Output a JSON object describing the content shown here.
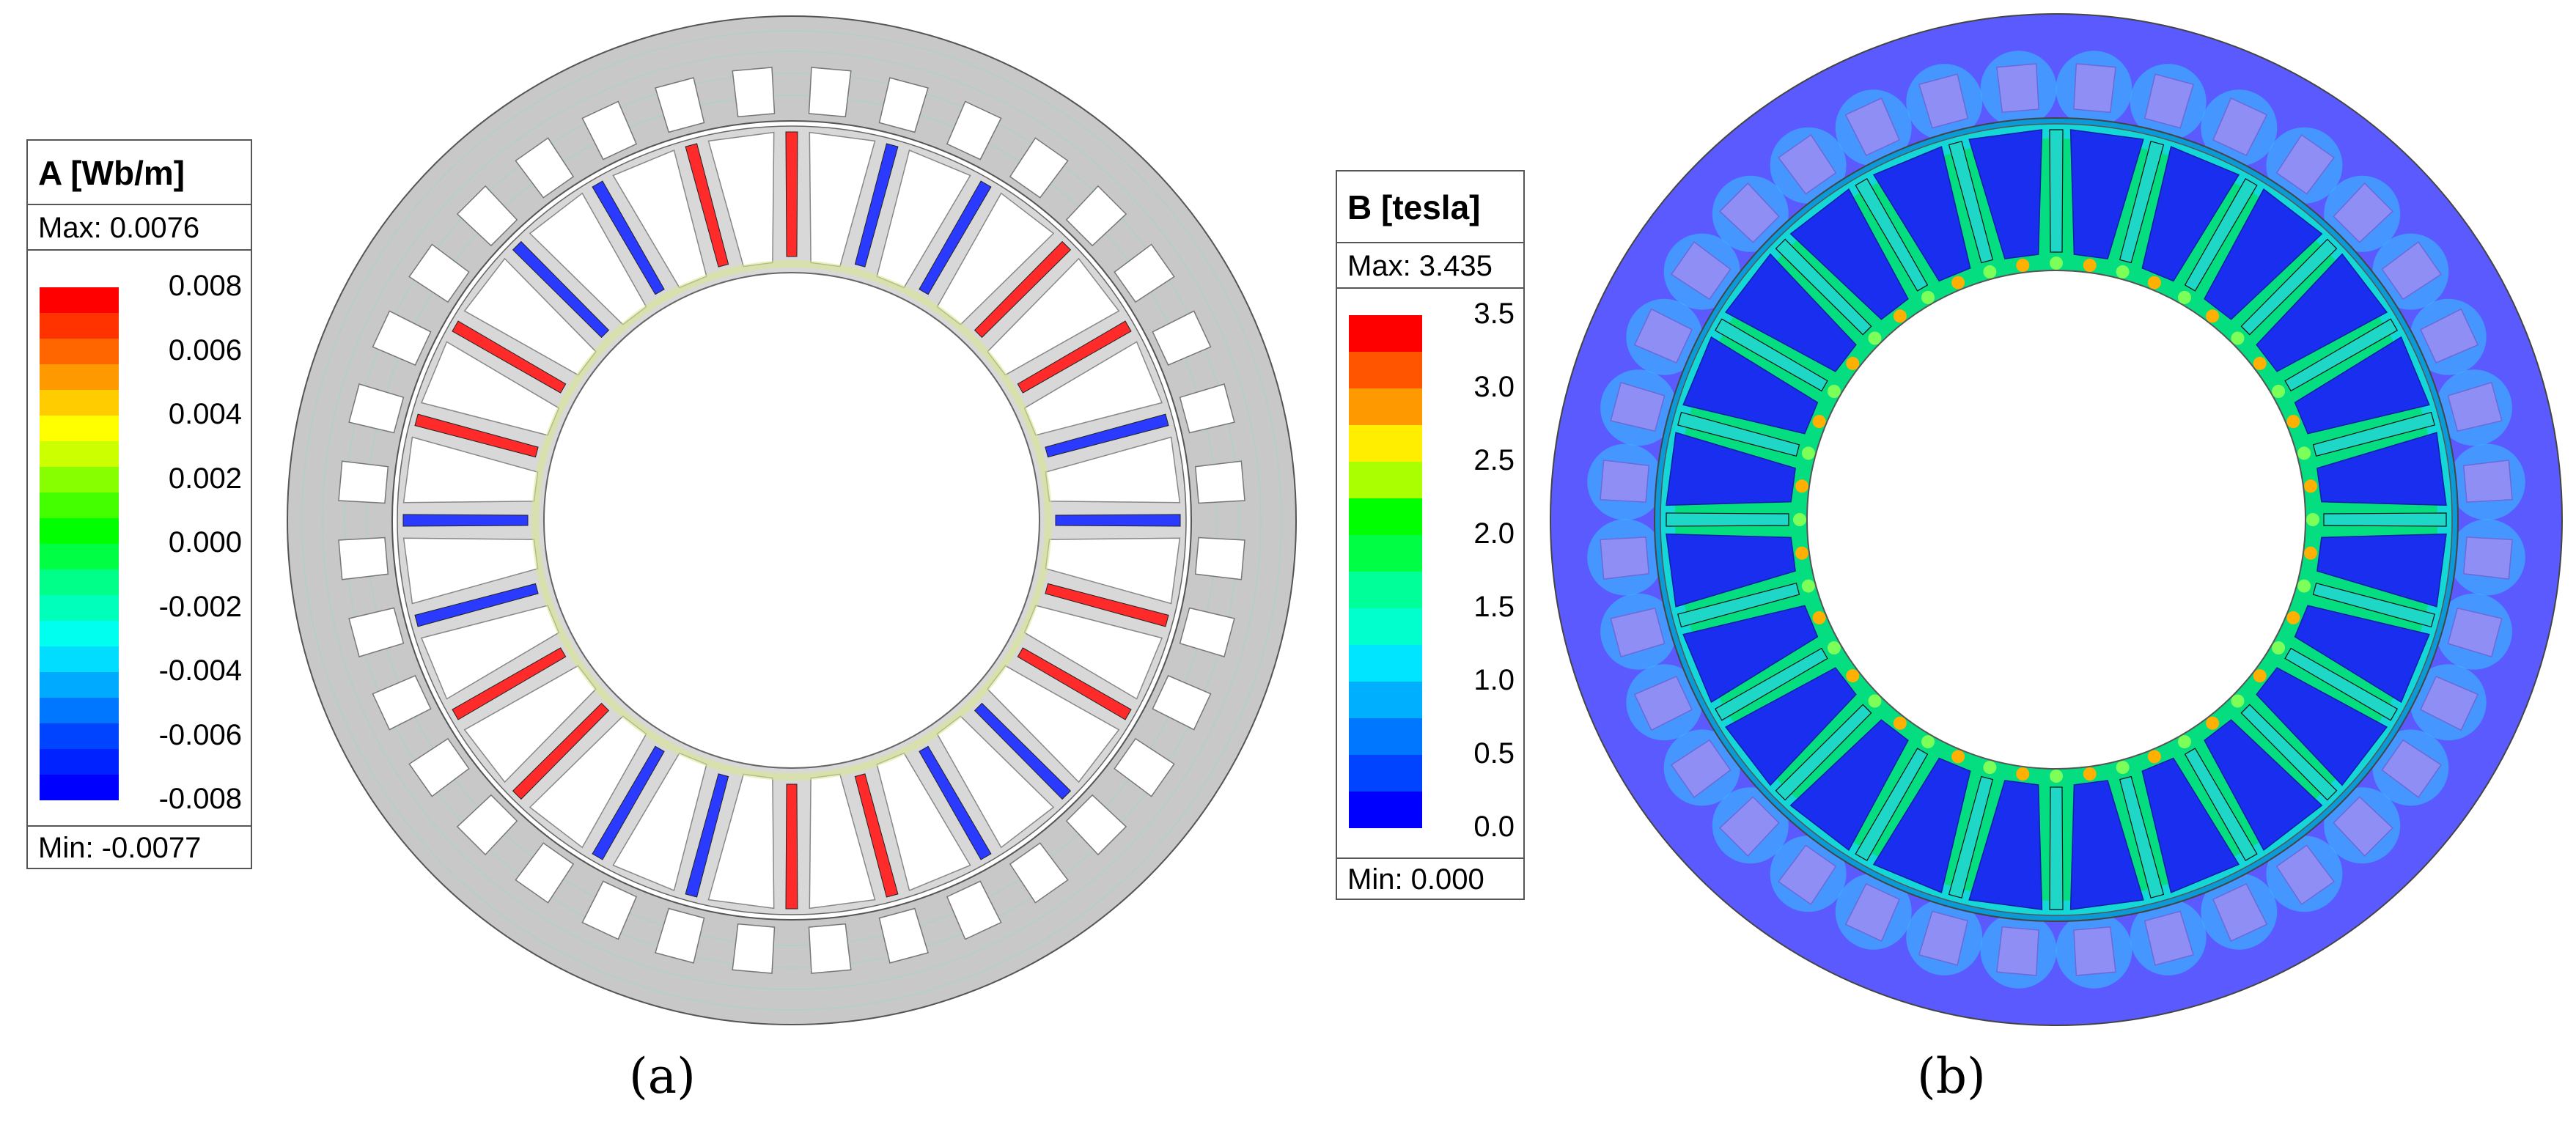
{
  "panel_a": {
    "label": "(a)",
    "legend": {
      "title": "A [Wb/m]",
      "max_text": "Max: 0.0076",
      "min_text": "Min: -0.0077",
      "ticks": [
        "0.008",
        "0.006",
        "0.004",
        "0.002",
        "0.000",
        "-0.002",
        "-0.004",
        "-0.006",
        "-0.008"
      ],
      "colors": [
        "#ff0000",
        "#ff3300",
        "#ff6600",
        "#ff9900",
        "#ffcc00",
        "#ffff00",
        "#ccff00",
        "#88ff00",
        "#44ff00",
        "#00ff00",
        "#00ff44",
        "#00ff88",
        "#00ffbb",
        "#00ffee",
        "#00ddff",
        "#00aaff",
        "#0077ff",
        "#0044ff",
        "#0022ff",
        "#0000ff"
      ]
    }
  },
  "panel_b": {
    "label": "(b)",
    "legend": {
      "title": "B [tesla]",
      "max_text": "Max: 3.435",
      "min_text": "Min: 0.000",
      "ticks": [
        "3.5",
        "3.0",
        "2.5",
        "2.0",
        "1.5",
        "1.0",
        "0.5",
        "0.0"
      ],
      "colors": [
        "#ff0000",
        "#ff5500",
        "#ff9900",
        "#ffee00",
        "#aaff00",
        "#00ff00",
        "#00ff44",
        "#00ff99",
        "#00ffcc",
        "#00e5ff",
        "#00b0ff",
        "#0077ff",
        "#0044ff",
        "#0000ff"
      ]
    }
  },
  "colors": {
    "stator_gray": "#c8c8c8",
    "field_blue": "#5a5aff",
    "deep_blue": "#1a2ef0",
    "coil_red": "#ff2a2a",
    "coil_blue": "#2a3aff"
  }
}
